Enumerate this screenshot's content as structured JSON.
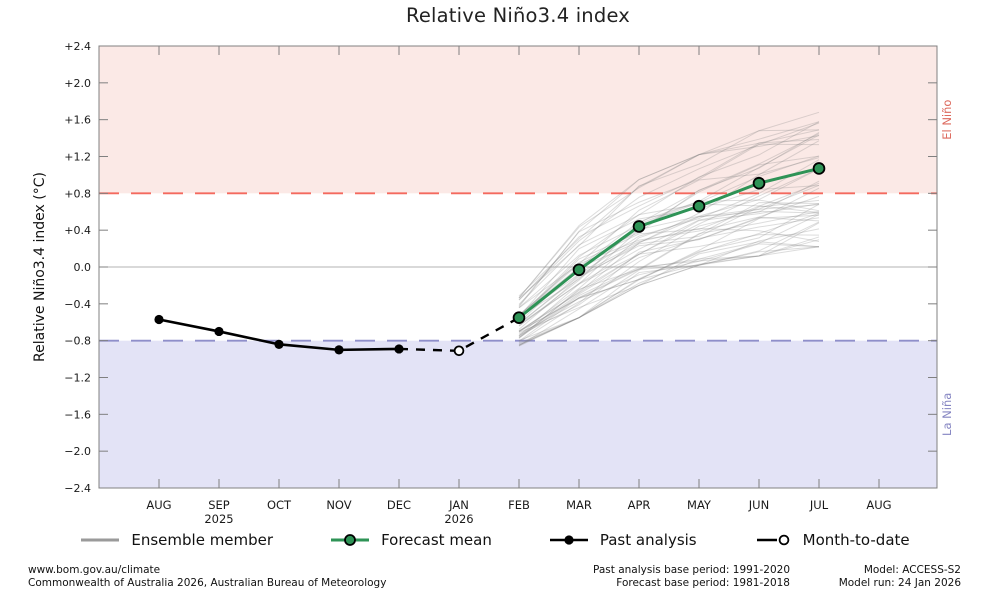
{
  "chart_data": {
    "type": "line",
    "title": "Relative Niño3.4 index",
    "ylabel": "Relative Niño3.4 index (°C)",
    "ylim": [
      -2.4,
      2.4
    ],
    "grid": "zero-line-only",
    "x_tick_labels": [
      "AUG",
      "SEP",
      "OCT",
      "NOV",
      "DEC",
      "JAN",
      "FEB",
      "MAR",
      "APR",
      "MAY",
      "JUN",
      "JUL",
      "AUG"
    ],
    "x_year_labels": [
      {
        "tick_index": 1,
        "label": "2025"
      },
      {
        "tick_index": 5,
        "label": "2026"
      }
    ],
    "y_ticks": [
      {
        "value": 2.4,
        "label": "+2.4"
      },
      {
        "value": 2.0,
        "label": "+2.0"
      },
      {
        "value": 1.6,
        "label": "+1.6"
      },
      {
        "value": 1.2,
        "label": "+1.2"
      },
      {
        "value": 0.8,
        "label": "+0.8"
      },
      {
        "value": 0.4,
        "label": "+0.4"
      },
      {
        "value": 0.0,
        "label": "0.0"
      },
      {
        "value": -0.4,
        "label": "−0.4"
      },
      {
        "value": -0.8,
        "label": "−0.8"
      },
      {
        "value": -1.2,
        "label": "−1.2"
      },
      {
        "value": -1.6,
        "label": "−1.6"
      },
      {
        "value": -2.0,
        "label": "−2.0"
      },
      {
        "value": -2.4,
        "label": "−2.4"
      }
    ],
    "thresholds": {
      "el_nino": 0.8,
      "la_nina": -0.8
    },
    "region_labels": {
      "el_nino": "El Niño",
      "la_nina": "La Niña"
    },
    "series": [
      {
        "name": "Past analysis",
        "style": "solid-black-filled-markers",
        "months": [
          "AUG",
          "SEP",
          "OCT",
          "NOV",
          "DEC"
        ],
        "x": [
          0,
          1,
          2,
          3,
          4
        ],
        "values": [
          -0.57,
          -0.7,
          -0.84,
          -0.9,
          -0.89
        ]
      },
      {
        "name": "Month-to-date",
        "style": "dashed-black-open-marker",
        "months": [
          "JAN"
        ],
        "x": [
          5
        ],
        "values": [
          -0.91
        ],
        "connector_x": [
          4,
          5,
          6
        ],
        "connector_values": [
          -0.89,
          -0.91,
          -0.55
        ]
      },
      {
        "name": "Forecast mean",
        "style": "solid-green-filled-markers",
        "months": [
          "FEB",
          "MAR",
          "APR",
          "MAY",
          "JUN",
          "JUL"
        ],
        "x": [
          6,
          7,
          8,
          9,
          10,
          11
        ],
        "values": [
          -0.55,
          -0.03,
          0.44,
          0.66,
          0.91,
          1.07
        ]
      },
      {
        "name": "Ensemble member",
        "style": "thin-gray-spaghetti",
        "months": [
          "FEB",
          "MAR",
          "APR",
          "MAY",
          "JUN",
          "JUL"
        ],
        "x": [
          6,
          7,
          8,
          9,
          10,
          11
        ],
        "member_count": 50,
        "envelope_min": [
          -0.86,
          -0.55,
          -0.2,
          0.02,
          0.12,
          0.22
        ],
        "envelope_max": [
          -0.3,
          0.45,
          0.95,
          1.22,
          1.48,
          1.68
        ]
      }
    ],
    "colors": {
      "el_nino_fill": "#fbe9e6",
      "la_nina_fill": "#e3e3f6",
      "el_nino_line": "#f4695e",
      "la_nina_line": "#8f8fca",
      "el_nino_text": "#dd6a5e",
      "la_nina_text": "#8585c2",
      "forecast_green": "#2e9356",
      "past_black": "#000000",
      "ensemble_gray": "#808080",
      "zero_line": "#b3b3b3",
      "frame": "#808080",
      "tick_label": "#1a1a1a"
    }
  },
  "legend": {
    "items": [
      {
        "label": "Ensemble member"
      },
      {
        "label": "Forecast mean"
      },
      {
        "label": "Past analysis"
      },
      {
        "label": "Month-to-date"
      }
    ]
  },
  "footer": {
    "left": {
      "line1": "www.bom.gov.au/climate",
      "line2": "Commonwealth of Australia 2026, Australian Bureau of Meteorology"
    },
    "center": {
      "line1": "Past analysis base period: 1991-2020",
      "line2": "Forecast base period: 1981-2018"
    },
    "right": {
      "line1": "Model: ACCESS-S2",
      "line2": "Model run: 24 Jan 2026"
    }
  }
}
